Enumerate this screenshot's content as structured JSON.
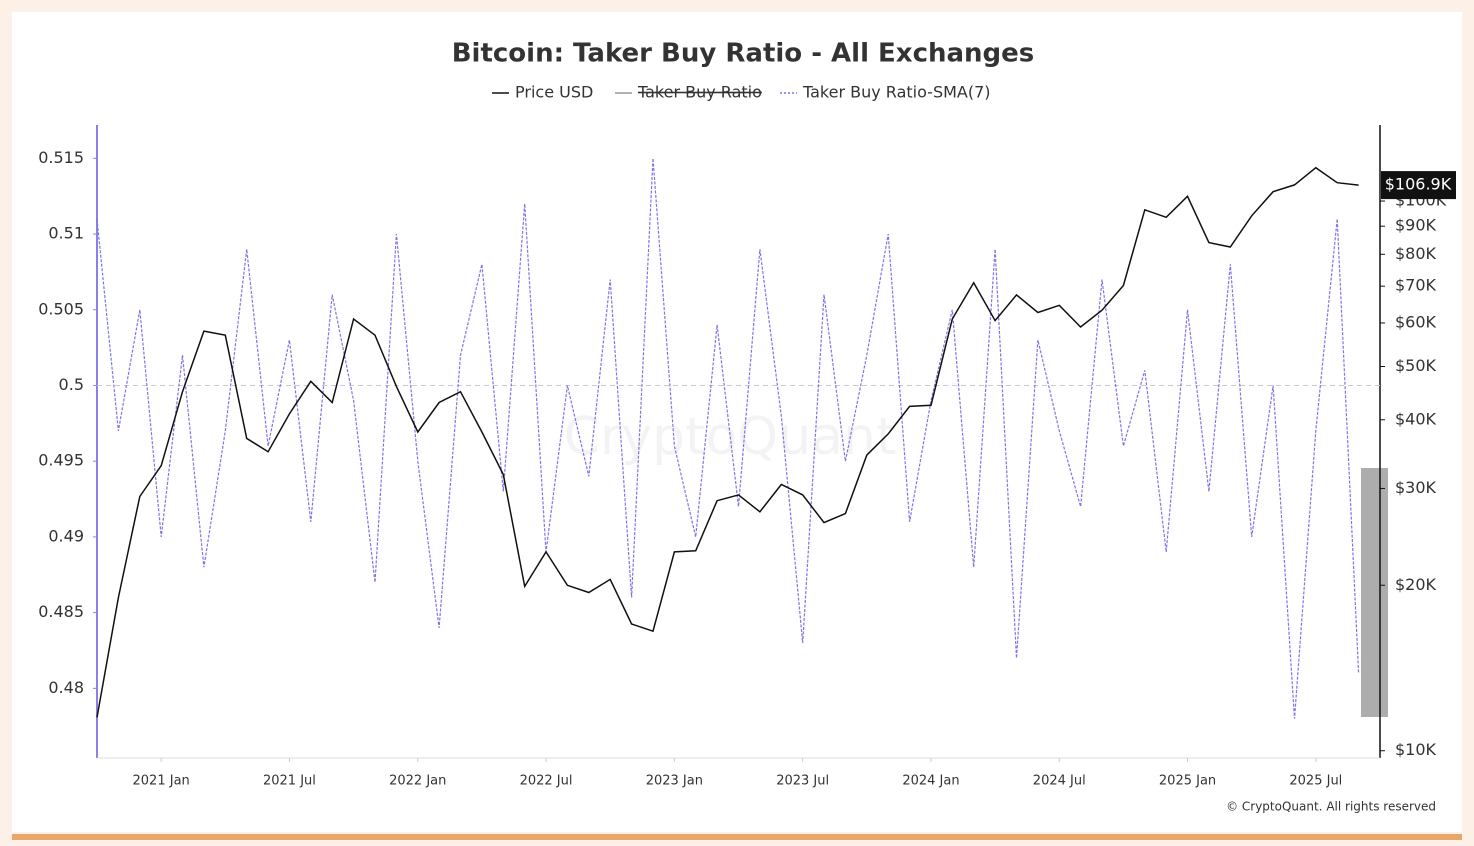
{
  "chart_data": {
    "type": "line",
    "title": "Bitcoin: Taker Buy Ratio - All Exchanges",
    "x": [
      "2020-10",
      "2020-11",
      "2020-12",
      "2021-01",
      "2021-02",
      "2021-03",
      "2021-04",
      "2021-05",
      "2021-06",
      "2021-07",
      "2021-08",
      "2021-09",
      "2021-10",
      "2021-11",
      "2021-12",
      "2022-01",
      "2022-02",
      "2022-03",
      "2022-04",
      "2022-05",
      "2022-06",
      "2022-07",
      "2022-08",
      "2022-09",
      "2022-10",
      "2022-11",
      "2022-12",
      "2023-01",
      "2023-02",
      "2023-03",
      "2023-04",
      "2023-05",
      "2023-06",
      "2023-07",
      "2023-08",
      "2023-09",
      "2023-10",
      "2023-11",
      "2023-12",
      "2024-01",
      "2024-02",
      "2024-03",
      "2024-04",
      "2024-05",
      "2024-06",
      "2024-07",
      "2024-08",
      "2024-09",
      "2024-10",
      "2024-11",
      "2024-12",
      "2025-01",
      "2025-02",
      "2025-03",
      "2025-04",
      "2025-05",
      "2025-06",
      "2025-07",
      "2025-08",
      "2025-09"
    ],
    "series": [
      {
        "name": "Price USD",
        "color": "#111111",
        "axis": "y2",
        "values": [
          11500,
          19000,
          29000,
          33000,
          45000,
          58000,
          57000,
          37000,
          35000,
          41000,
          47000,
          43000,
          61000,
          57000,
          46000,
          38000,
          43000,
          45000,
          38000,
          31800,
          19900,
          23000,
          20000,
          19400,
          20500,
          17000,
          16500,
          23000,
          23100,
          28500,
          29200,
          27200,
          30500,
          29200,
          26000,
          27000,
          34500,
          37700,
          42300,
          42500,
          61000,
          71000,
          60600,
          67500,
          62700,
          64600,
          59000,
          63300,
          70200,
          96400,
          93400,
          102000,
          84000,
          82500,
          94000,
          104000,
          107000,
          115000,
          108000,
          106900
        ]
      },
      {
        "name": "Taker Buy Ratio",
        "color": "#9a9a9a",
        "hidden": true
      },
      {
        "name": "Taker Buy Ratio-SMA(7)",
        "color": "#7f74e6",
        "values": [
          0.511,
          0.497,
          0.505,
          0.49,
          0.502,
          0.488,
          0.497,
          0.509,
          0.496,
          0.503,
          0.491,
          0.506,
          0.499,
          0.487,
          0.51,
          0.495,
          0.484,
          0.502,
          0.508,
          0.493,
          0.512,
          0.489,
          0.5,
          0.494,
          0.507,
          0.486,
          0.515,
          0.496,
          0.49,
          0.504,
          0.492,
          0.509,
          0.498,
          0.483,
          0.506,
          0.495,
          0.502,
          0.51,
          0.491,
          0.499,
          0.505,
          0.488,
          0.509,
          0.482,
          0.503,
          0.497,
          0.492,
          0.507,
          0.496,
          0.501,
          0.489,
          0.505,
          0.493,
          0.508,
          0.49,
          0.5,
          0.478,
          0.497,
          0.511,
          0.481
        ]
      }
    ],
    "xlim": [
      "2020-10",
      "2025-10"
    ],
    "xticks": [
      {
        "value": "2021-01",
        "label": "2021 Jan"
      },
      {
        "value": "2021-07",
        "label": "2021 Jul"
      },
      {
        "value": "2022-01",
        "label": "2022 Jan"
      },
      {
        "value": "2022-07",
        "label": "2022 Jul"
      },
      {
        "value": "2023-01",
        "label": "2023 Jan"
      },
      {
        "value": "2023-07",
        "label": "2023 Jul"
      },
      {
        "value": "2024-01",
        "label": "2024 Jan"
      },
      {
        "value": "2024-07",
        "label": "2024 Jul"
      },
      {
        "value": "2025-01",
        "label": "2025 Jan"
      },
      {
        "value": "2025-07",
        "label": "2025 Jul"
      }
    ],
    "ylim": [
      0.4754,
      0.5172
    ],
    "yticks": [
      0.48,
      0.485,
      0.49,
      0.495,
      0.5,
      0.505,
      0.51,
      0.515
    ],
    "y2lim": [
      9700,
      137500
    ],
    "y2_log": true,
    "y2ticks": [
      {
        "value": 10000,
        "label": "$10K"
      },
      {
        "value": 20000,
        "label": "$20K"
      },
      {
        "value": 30000,
        "label": "$30K"
      },
      {
        "value": 40000,
        "label": "$40K"
      },
      {
        "value": 50000,
        "label": "$50K"
      },
      {
        "value": 60000,
        "label": "$60K"
      },
      {
        "value": 70000,
        "label": "$70K"
      },
      {
        "value": 80000,
        "label": "$80K"
      },
      {
        "value": 90000,
        "label": "$90K"
      },
      {
        "value": 100000,
        "label": "$100K"
      }
    ],
    "hline": 0.5,
    "annotations": [
      {
        "label": "$106.9K",
        "value": 106900,
        "axis": "y2"
      }
    ],
    "watermark": "CryptoQuant",
    "credit": "© CryptoQuant. All rights reserved"
  }
}
